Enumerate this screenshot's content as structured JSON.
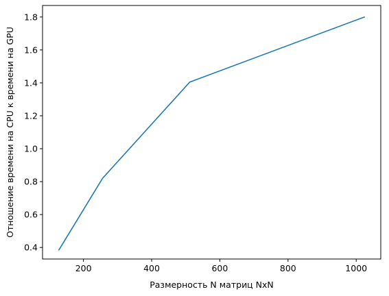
{
  "chart_data": {
    "type": "line",
    "title": "",
    "xlabel": "Размерность N матриц NxN",
    "ylabel": "Отношение времени на CPU к времени на GPU",
    "x": [
      128,
      256,
      512,
      1024
    ],
    "series": [
      {
        "values": [
          0.385,
          0.82,
          1.405,
          1.8
        ],
        "color": "#1f77b4"
      }
    ],
    "xlim": [
      80,
      1072
    ],
    "ylim": [
      0.33,
      1.87
    ],
    "xticks": [
      200,
      400,
      600,
      800,
      1000
    ],
    "xtick_labels": [
      "200",
      "400",
      "600",
      "800",
      "1000"
    ],
    "yticks": [
      0.4,
      0.6,
      0.8,
      1.0,
      1.2,
      1.4,
      1.6,
      1.8
    ],
    "ytick_labels": [
      "0.4",
      "0.6",
      "0.8",
      "1.0",
      "1.2",
      "1.4",
      "1.6",
      "1.8"
    ],
    "grid": false,
    "legend": "none"
  }
}
